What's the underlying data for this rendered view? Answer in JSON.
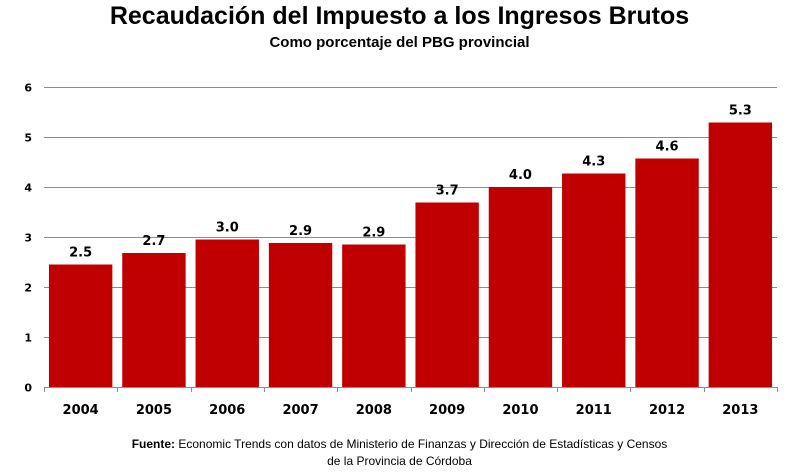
{
  "chart_data": {
    "type": "bar",
    "title": "Recaudación del Impuesto a los Ingresos Brutos",
    "subtitle": "Como porcentaje del PBG provincial",
    "xlabel": "",
    "ylabel": "",
    "categories": [
      "2004",
      "2005",
      "2006",
      "2007",
      "2008",
      "2009",
      "2010",
      "2011",
      "2012",
      "2013"
    ],
    "values": [
      2.45,
      2.68,
      2.95,
      2.88,
      2.85,
      3.69,
      4.0,
      4.27,
      4.57,
      5.29
    ],
    "data_labels": [
      "2.5",
      "2.7",
      "3.0",
      "2.9",
      "2.9",
      "3.7",
      "4.0",
      "4.3",
      "4.6",
      "5.3"
    ],
    "ylim": [
      0,
      6
    ],
    "yticks": [
      "0",
      "1",
      "2",
      "3",
      "4",
      "5",
      "6"
    ],
    "grid": true,
    "legend": "none",
    "bar_color": "#C00000",
    "grid_color": "#8C8C8C"
  },
  "source": {
    "label": "Fuente:",
    "text_line1": " Economic Trends con datos de Ministerio de Finanzas y Dirección de Estadísticas y Censos",
    "text_line2": "de la Provincia de Córdoba"
  }
}
